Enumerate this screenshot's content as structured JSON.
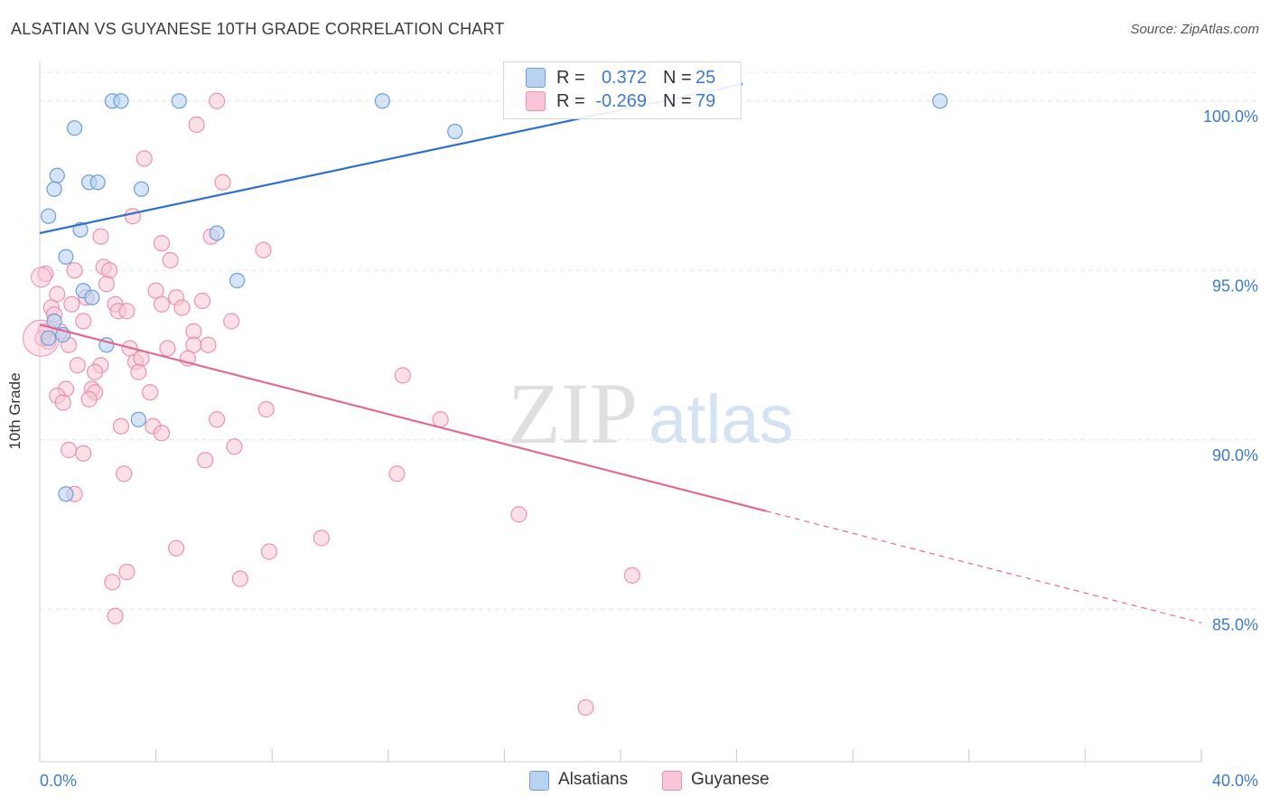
{
  "header": {
    "title": "ALSATIAN VS GUYANESE 10TH GRADE CORRELATION CHART",
    "source": "Source: ZipAtlas.com"
  },
  "legend_top": {
    "rows": [
      {
        "r_label": "R =",
        "r_value": "0.372",
        "n_label": "N =",
        "n_value": "25"
      },
      {
        "r_label": "R =",
        "r_value": "-0.269",
        "n_label": "N =",
        "n_value": "79"
      }
    ]
  },
  "legend_bottom": [
    "Alsatians",
    "Guyanese"
  ],
  "watermark": {
    "zip": "ZIP",
    "atlas": "atlas"
  },
  "colors": {
    "alsatians_fill": "#b9d2f0",
    "alsatians_stroke": "#6d9fd8",
    "alsatians_line": "#2e6fcc",
    "guyanese_fill": "#f8c6d6",
    "guyanese_stroke": "#e892ae",
    "guyanese_line": "#e06a94",
    "tick_label": "#3d7bc8",
    "grid": "#e3e3e3"
  },
  "chart_data": {
    "type": "scatter",
    "title": "ALSATIAN VS GUYANESE 10TH GRADE CORRELATION CHART",
    "xlabel": "",
    "ylabel": "10th Grade",
    "xlim": [
      0,
      40
    ],
    "ylim": [
      80.5,
      100.9
    ],
    "x_tick_labels": [
      "0.0%",
      "40.0%"
    ],
    "y_ticks": [
      85,
      90,
      95,
      100
    ],
    "y_tick_labels": [
      "85.0%",
      "90.0%",
      "95.0%",
      "100.0%"
    ],
    "grid": true,
    "legend_position": "bottom",
    "series": [
      {
        "name": "Alsatians",
        "r": 0.372,
        "n": 25,
        "trend": {
          "x0": 0,
          "y0": 96.1,
          "x1": 24.2,
          "y1": 100.5
        },
        "points": [
          [
            2.5,
            100.0
          ],
          [
            2.8,
            100.0
          ],
          [
            4.8,
            100.0
          ],
          [
            11.8,
            100.0
          ],
          [
            31.0,
            100.0
          ],
          [
            1.2,
            99.2
          ],
          [
            14.3,
            99.1
          ],
          [
            0.6,
            97.8
          ],
          [
            0.5,
            97.4
          ],
          [
            1.7,
            97.6
          ],
          [
            2.0,
            97.6
          ],
          [
            3.5,
            97.4
          ],
          [
            0.3,
            96.6
          ],
          [
            1.4,
            96.2
          ],
          [
            6.1,
            96.1
          ],
          [
            0.9,
            95.4
          ],
          [
            6.8,
            94.7
          ],
          [
            1.5,
            94.4
          ],
          [
            1.8,
            94.2
          ],
          [
            0.8,
            93.1
          ],
          [
            2.3,
            92.8
          ],
          [
            3.4,
            90.6
          ],
          [
            0.9,
            88.4
          ],
          [
            0.5,
            93.5
          ],
          [
            0.3,
            93.0
          ]
        ]
      },
      {
        "name": "Guyanese",
        "r": -0.269,
        "n": 79,
        "trend": {
          "x0": 0,
          "y0": 93.4,
          "x1": 25.0,
          "y1": 87.9,
          "dash_x1": 40,
          "dash_y1": 84.6
        },
        "points": [
          [
            6.1,
            100.0
          ],
          [
            16.5,
            100.0
          ],
          [
            5.4,
            99.3
          ],
          [
            3.6,
            98.3
          ],
          [
            6.3,
            97.6
          ],
          [
            3.2,
            96.6
          ],
          [
            5.9,
            96.0
          ],
          [
            2.1,
            96.0
          ],
          [
            4.2,
            95.8
          ],
          [
            7.7,
            95.6
          ],
          [
            4.5,
            95.3
          ],
          [
            2.2,
            95.1
          ],
          [
            0.2,
            94.9
          ],
          [
            2.4,
            95.0
          ],
          [
            1.2,
            95.0
          ],
          [
            4.0,
            94.4
          ],
          [
            2.3,
            94.6
          ],
          [
            0.6,
            94.3
          ],
          [
            1.6,
            94.2
          ],
          [
            2.6,
            94.0
          ],
          [
            4.7,
            94.2
          ],
          [
            5.6,
            94.1
          ],
          [
            4.2,
            94.0
          ],
          [
            2.7,
            93.8
          ],
          [
            3.0,
            93.8
          ],
          [
            0.4,
            93.9
          ],
          [
            0.5,
            93.7
          ],
          [
            1.5,
            93.5
          ],
          [
            6.6,
            93.5
          ],
          [
            0.2,
            93.2
          ],
          [
            0.7,
            93.2
          ],
          [
            5.3,
            93.2
          ],
          [
            1.0,
            92.8
          ],
          [
            3.1,
            92.7
          ],
          [
            4.4,
            92.7
          ],
          [
            5.3,
            92.8
          ],
          [
            5.8,
            92.8
          ],
          [
            5.1,
            92.4
          ],
          [
            3.3,
            92.3
          ],
          [
            3.5,
            92.4
          ],
          [
            1.3,
            92.2
          ],
          [
            2.1,
            92.2
          ],
          [
            1.9,
            92.0
          ],
          [
            3.4,
            92.0
          ],
          [
            12.5,
            91.9
          ],
          [
            1.8,
            91.5
          ],
          [
            0.9,
            91.5
          ],
          [
            1.9,
            91.4
          ],
          [
            0.6,
            91.3
          ],
          [
            3.8,
            91.4
          ],
          [
            0.8,
            91.1
          ],
          [
            1.7,
            91.2
          ],
          [
            7.8,
            90.9
          ],
          [
            6.1,
            90.6
          ],
          [
            13.8,
            90.6
          ],
          [
            2.8,
            90.4
          ],
          [
            3.9,
            90.4
          ],
          [
            4.2,
            90.2
          ],
          [
            1.0,
            89.7
          ],
          [
            1.5,
            89.6
          ],
          [
            6.7,
            89.8
          ],
          [
            5.7,
            89.4
          ],
          [
            2.9,
            89.0
          ],
          [
            12.3,
            89.0
          ],
          [
            1.2,
            88.4
          ],
          [
            16.5,
            87.8
          ],
          [
            9.7,
            87.1
          ],
          [
            4.7,
            86.8
          ],
          [
            7.9,
            86.7
          ],
          [
            3.0,
            86.1
          ],
          [
            2.5,
            85.8
          ],
          [
            6.9,
            85.9
          ],
          [
            20.4,
            86.0
          ],
          [
            2.6,
            84.8
          ],
          [
            18.8,
            82.1
          ],
          [
            1.1,
            94.0
          ],
          [
            0.3,
            92.9
          ],
          [
            0.1,
            93.0
          ],
          [
            4.9,
            93.9
          ]
        ]
      }
    ]
  }
}
